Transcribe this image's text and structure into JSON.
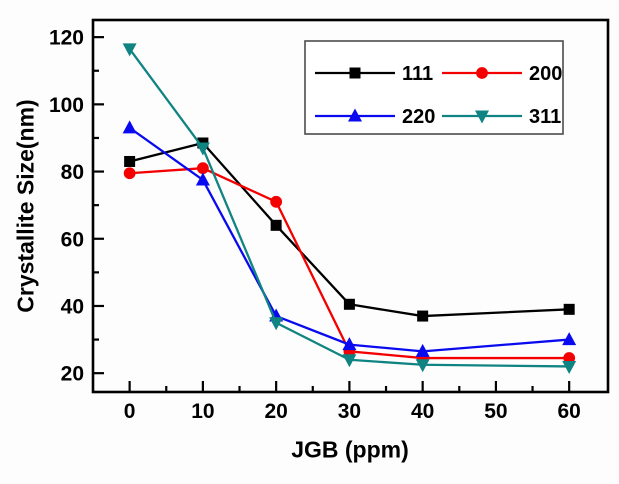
{
  "figure": {
    "background": "#fdfdfd",
    "frame_color": "#000000",
    "legend_border_color": "#4c4c4c"
  },
  "chart_data": {
    "type": "line",
    "title": "",
    "xlabel": "JGB (ppm)",
    "ylabel": "Crystallite Size(nm)",
    "grid": false,
    "legend_position": "top-right-inside",
    "x": [
      0,
      10,
      20,
      30,
      40,
      60
    ],
    "xlim": [
      -5,
      65.3
    ],
    "ylim": [
      14.4,
      125.1
    ],
    "x_ticks_major": [
      0,
      10,
      20,
      30,
      40,
      50,
      60
    ],
    "x_ticks_minor": [
      5,
      15,
      25,
      35,
      45,
      55
    ],
    "y_ticks_major": [
      20,
      40,
      60,
      80,
      100,
      120
    ],
    "y_ticks_minor": [
      30,
      50,
      70,
      90,
      110
    ],
    "series": [
      {
        "name": "111",
        "color": "#000000",
        "marker": "square",
        "values": [
          83,
          88.5,
          64,
          40.5,
          37,
          39
        ]
      },
      {
        "name": "200",
        "color": "#f40000",
        "marker": "circle",
        "values": [
          79.5,
          81,
          71,
          26.5,
          24.5,
          24.5
        ]
      },
      {
        "name": "220",
        "color": "#0a0af0",
        "marker": "triangle-up",
        "values": [
          93,
          77.5,
          37,
          28.5,
          26.5,
          30
        ]
      },
      {
        "name": "311",
        "color": "#108383",
        "marker": "triangle-down",
        "values": [
          116.5,
          87,
          35,
          24,
          22.5,
          22
        ]
      }
    ]
  }
}
